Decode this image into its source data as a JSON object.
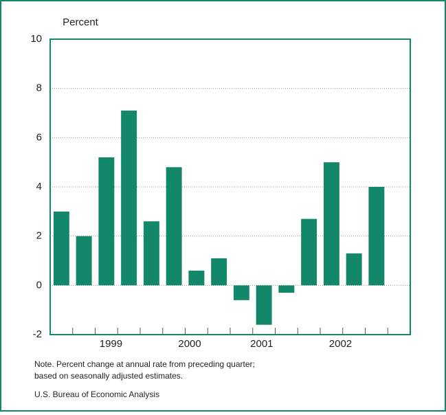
{
  "chart_data": {
    "type": "bar",
    "y_label": "Percent",
    "x": [
      0.5,
      1.5,
      2.5,
      3.5,
      4.5,
      5.5,
      6.5,
      7.5,
      8.5,
      9.5,
      10.5,
      11.5,
      12.5,
      13.5,
      14.5
    ],
    "values": [
      3.0,
      2.0,
      5.2,
      7.1,
      2.6,
      4.8,
      0.6,
      1.1,
      -0.6,
      -1.6,
      -0.3,
      2.7,
      5.0,
      1.3,
      4.0
    ],
    "color": "#13876a",
    "xlim": [
      0,
      16
    ],
    "xticks": [
      {
        "value": 2.7,
        "label": "1999"
      },
      {
        "value": 6.2,
        "label": "2000"
      },
      {
        "value": 9.4,
        "label": "2001"
      },
      {
        "value": 12.9,
        "label": "2002"
      }
    ],
    "ylim": [
      -2,
      10
    ],
    "yticks": [
      -2,
      0,
      2,
      4,
      6,
      8,
      10
    ],
    "grid": true,
    "notes": [
      "Note. Percent change at annual rate from preceding quarter;",
      "based on seasonally adjusted estimates.",
      "U.S. Bureau of Economic Analysis"
    ]
  }
}
